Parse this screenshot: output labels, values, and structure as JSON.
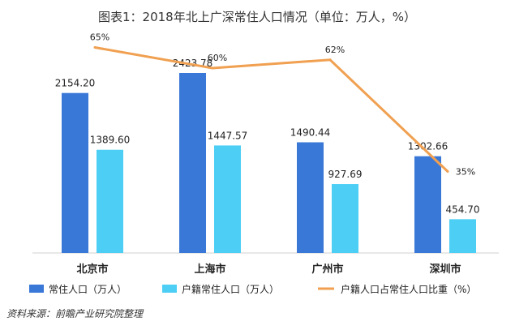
{
  "chart_data": {
    "type": "bar",
    "title": "图表1：2018年北上广深常住人口情况（单位：万人，%）",
    "categories": [
      "北京市",
      "上海市",
      "广州市",
      "深圳市"
    ],
    "series": [
      {
        "name": "常住人口（万人）",
        "kind": "bar",
        "color": "#3a78d8",
        "values": [
          2154.2,
          2423.78,
          1490.44,
          1302.66
        ]
      },
      {
        "name": "户籍常住人口（万人）",
        "kind": "bar",
        "color": "#4dcff5",
        "values": [
          1389.6,
          1447.57,
          927.69,
          454.7
        ]
      },
      {
        "name": "户籍人口占常住人口比重（%）",
        "kind": "line",
        "color": "#f0a050",
        "values": [
          65,
          60,
          62,
          35
        ]
      }
    ],
    "ylim": [
      0,
      2600
    ],
    "ylim_secondary": [
      0,
      100
    ],
    "grid": false,
    "legend_position": "bottom"
  },
  "source": "资料来源：前瞻产业研究院整理",
  "watermark": "前瞻产业研究院"
}
